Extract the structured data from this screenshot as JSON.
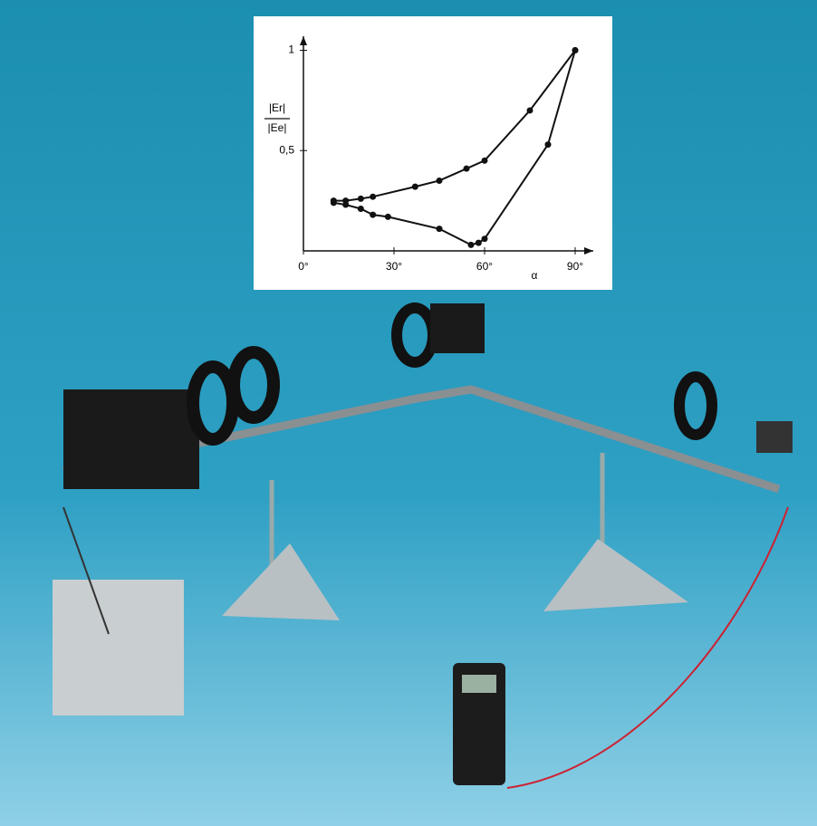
{
  "chart_data": {
    "type": "line",
    "y_label_numerator": "|Er|",
    "y_label_denominator": "|Ee|",
    "x_label": "α",
    "xlim": [
      0,
      96
    ],
    "ylim": [
      0,
      1.07
    ],
    "xticks": [
      {
        "value": 0,
        "label": "0°"
      },
      {
        "value": 30,
        "label": "30°"
      },
      {
        "value": 60,
        "label": "60°"
      },
      {
        "value": 90,
        "label": "90°"
      }
    ],
    "yticks": [
      {
        "value": 0.5,
        "label": "0,5"
      },
      1
    ],
    "series": [
      {
        "color": "#111111",
        "x": [
          10,
          14,
          19,
          23,
          37,
          45,
          54,
          60,
          75,
          90
        ],
        "values": [
          0.25,
          0.25,
          0.26,
          0.27,
          0.32,
          0.35,
          0.41,
          0.45,
          0.7,
          1
        ]
      },
      {
        "color": "#111111",
        "x": [
          10,
          14,
          19,
          23,
          28,
          45,
          55.5,
          58,
          60,
          81,
          90
        ],
        "values": [
          0.24,
          0.23,
          0.21,
          0.18,
          0.17,
          0.11,
          0.03,
          0.04,
          0.06,
          0.53,
          1
        ]
      }
    ]
  }
}
